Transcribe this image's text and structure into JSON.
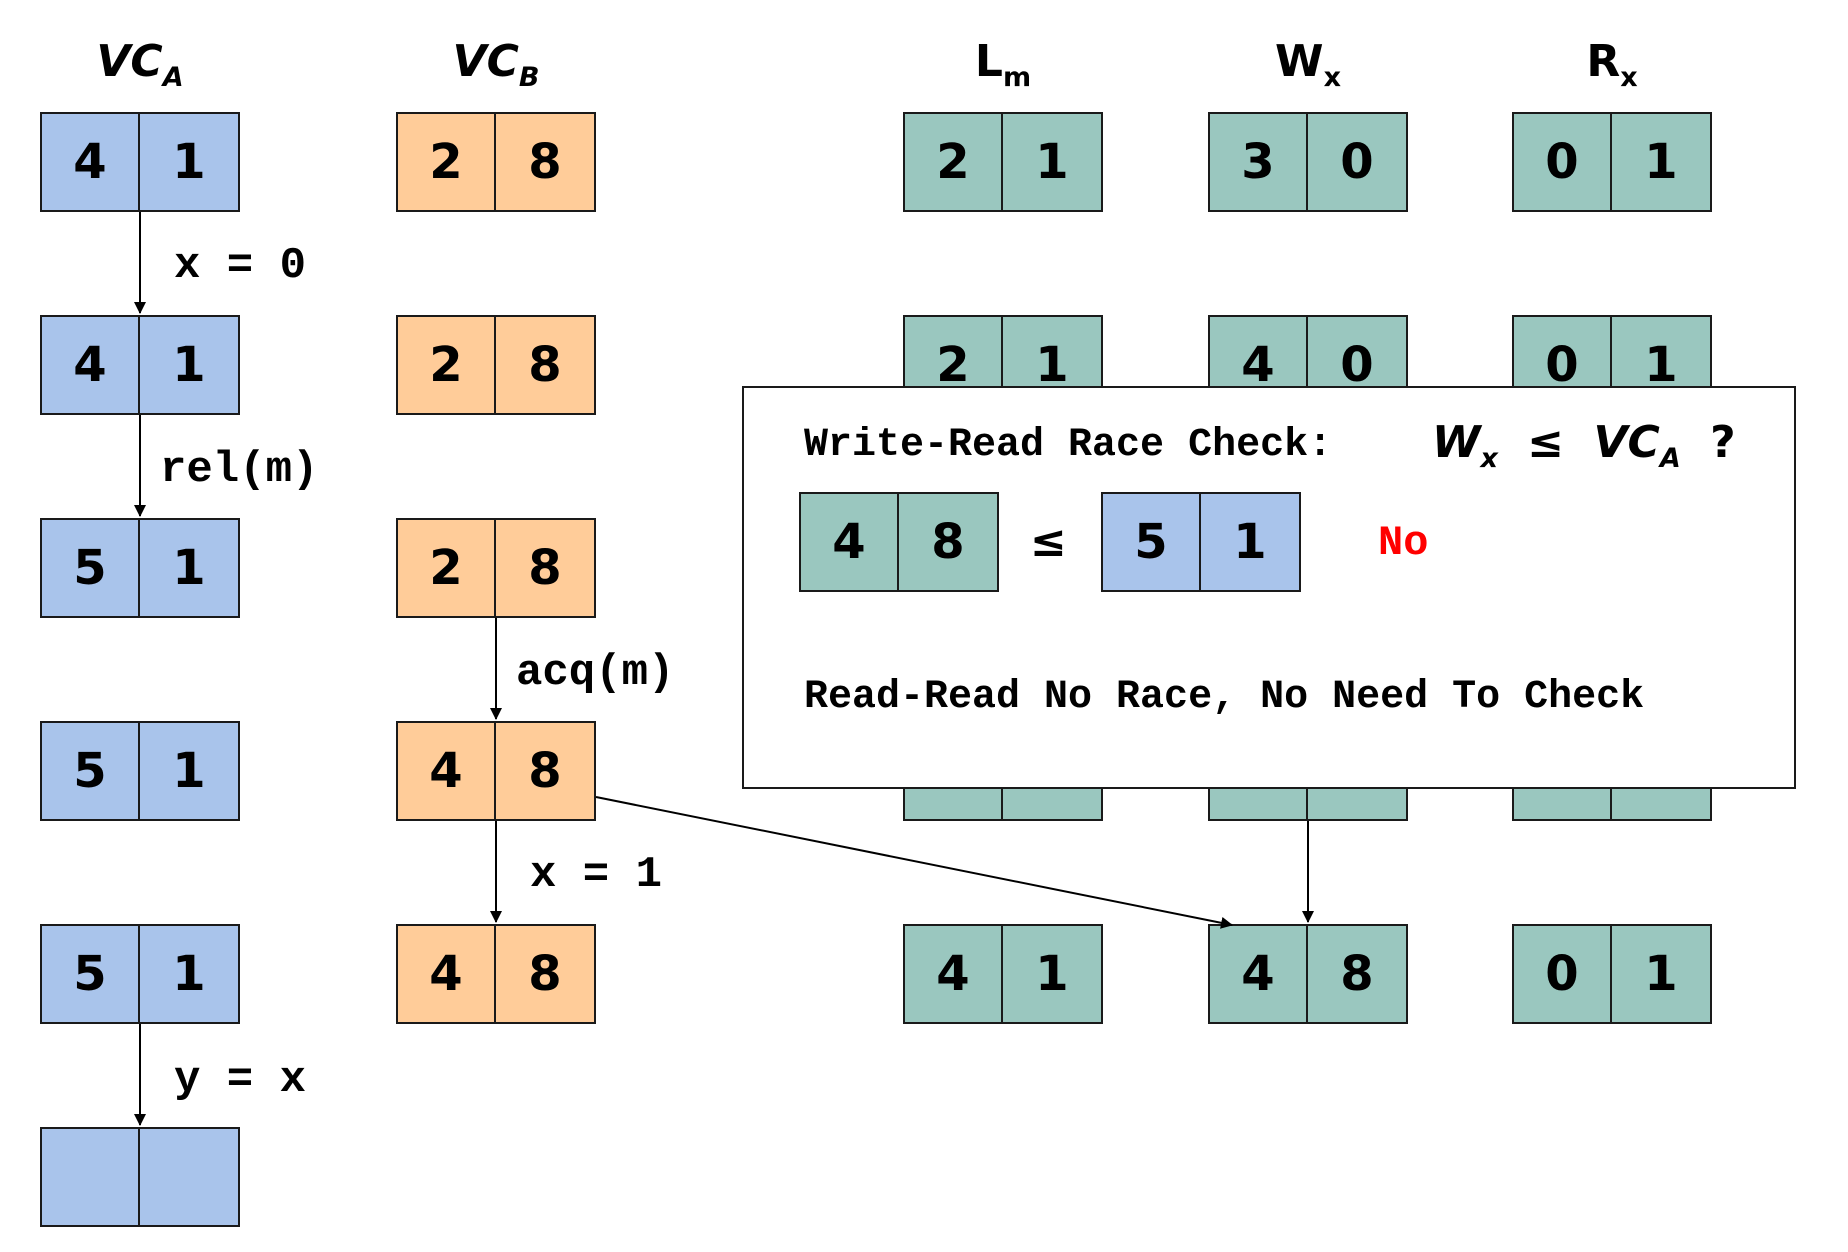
{
  "colors": {
    "thread_a": "#a9c4eb",
    "thread_b": "#ffcc99",
    "shared": "#9ac7bf",
    "verdict": "#ff0000"
  },
  "headers": {
    "vca": {
      "main": "VC",
      "sub": "A"
    },
    "vcb": {
      "main": "VC",
      "sub": "B"
    },
    "lm": {
      "main": "L",
      "sub": "m"
    },
    "wx": {
      "main": "W",
      "sub": "x"
    },
    "rx": {
      "main": "R",
      "sub": "x"
    }
  },
  "vca": [
    [
      "4",
      "1"
    ],
    [
      "4",
      "1"
    ],
    [
      "5",
      "1"
    ],
    [
      "5",
      "1"
    ],
    [
      "5",
      "1"
    ],
    [
      "",
      ""
    ]
  ],
  "vcb": [
    [
      "2",
      "8"
    ],
    [
      "2",
      "8"
    ],
    [
      "2",
      "8"
    ],
    [
      "4",
      "8"
    ],
    [
      "4",
      "8"
    ]
  ],
  "lm": {
    "row1": [
      "2",
      "1"
    ],
    "row2": [
      "2",
      "1"
    ],
    "row5": [
      "4",
      "1"
    ]
  },
  "wx": {
    "row1": [
      "3",
      "0"
    ],
    "row2": [
      "4",
      "0"
    ],
    "row5": [
      "4",
      "8"
    ]
  },
  "rx": {
    "row1": [
      "0",
      "1"
    ],
    "row2": [
      "0",
      "1"
    ],
    "row5": [
      "0",
      "1"
    ]
  },
  "edges": {
    "a1": "x = 0",
    "a2": "rel(m)",
    "b3": "acq(m)",
    "b4": "x = 1",
    "a5": "y = x"
  },
  "check": {
    "title_text": "Write-Read Race Check:",
    "expr_left_main": "W",
    "expr_left_sub": "x",
    "expr_op": "≤",
    "expr_right_main": "VC",
    "expr_right_sub": "A",
    "expr_q": "?",
    "left_vec": [
      "4",
      "8"
    ],
    "leq": "≤",
    "right_vec": [
      "5",
      "1"
    ],
    "verdict": "No",
    "note": "Read-Read No Race, No Need To Check"
  }
}
